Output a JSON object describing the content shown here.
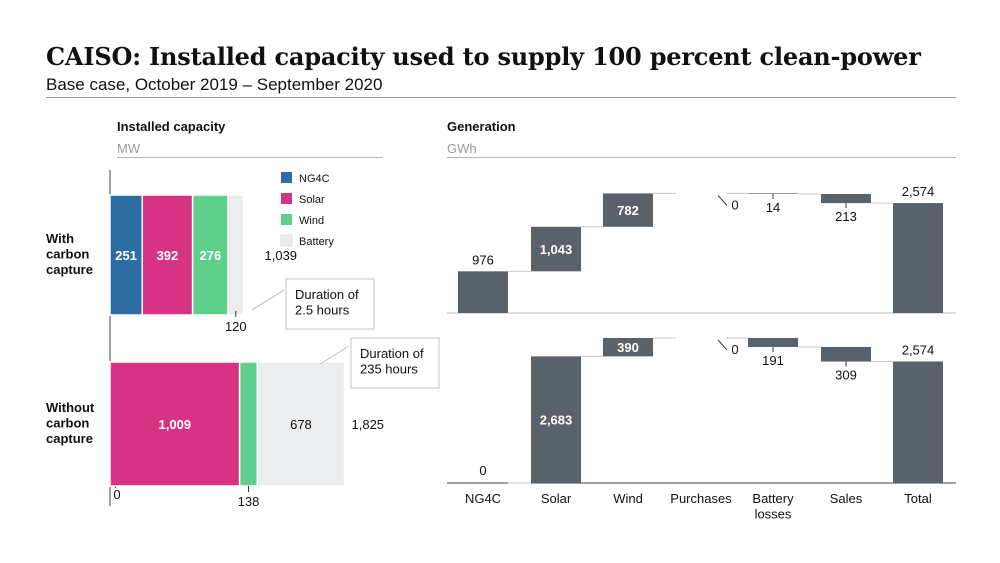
{
  "header": {
    "title": "CAISO: Installed capacity used to supply 100 percent clean-power",
    "subtitle": "Base case, October 2019 – September 2020"
  },
  "chart_data": [
    {
      "type": "bar",
      "orientation": "horizontal-stacked",
      "title": "Installed capacity",
      "unit": "MW",
      "categories": [
        "With\ncarbon\ncapture",
        "Without\ncarbon\ncapture"
      ],
      "series": [
        {
          "name": "NG4C",
          "color": "#2e6ca4",
          "values": [
            251,
            0
          ]
        },
        {
          "name": "Solar",
          "color": "#d63384",
          "values": [
            392,
            1009
          ]
        },
        {
          "name": "Wind",
          "color": "#5fcf8c",
          "values": [
            276,
            138
          ]
        },
        {
          "name": "Battery",
          "color": "#ebeced",
          "values": [
            120,
            678
          ]
        }
      ],
      "totals": [
        1039,
        1825
      ],
      "annotations": [
        "Duration of\n2.5 hours",
        "Duration of\n235 hours"
      ],
      "legend": "top-right"
    },
    {
      "type": "bar",
      "orientation": "waterfall",
      "title": "Generation",
      "unit": "GWh",
      "categories": [
        "NG4C",
        "Solar",
        "Wind",
        "Purchases",
        "Battery\nlosses",
        "Sales",
        "Total"
      ],
      "bar_color": "#59616a",
      "series": [
        {
          "values": [
            976,
            1043,
            782,
            0,
            -14,
            -213,
            2574
          ]
        },
        {
          "values": [
            0,
            2683,
            390,
            0,
            -191,
            -309,
            2574
          ]
        }
      ],
      "labels": [
        [
          "976",
          "1,043",
          "782",
          "0",
          "14",
          "213",
          "2,574"
        ],
        [
          "0",
          "2,683",
          "390",
          "0",
          "191",
          "309",
          "2,574"
        ]
      ]
    }
  ]
}
